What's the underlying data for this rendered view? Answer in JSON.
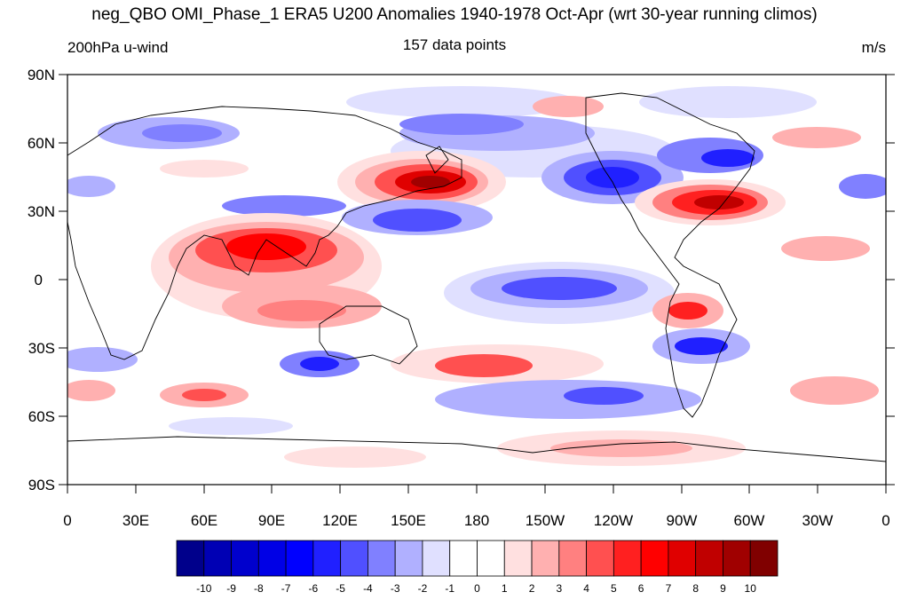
{
  "header": {
    "title": "neg_QBO OMI_Phase_1 ERA5 U200 Anomalies 1940-1978 Oct-Apr (wrt 30-year running climos)",
    "left_label": "200hPa u-wind",
    "center_label": "157 data points",
    "right_label": "m/s"
  },
  "axes": {
    "y_ticks": [
      "90N",
      "60N",
      "30N",
      "0",
      "30S",
      "60S",
      "90S"
    ],
    "x_ticks": [
      "0",
      "30E",
      "60E",
      "90E",
      "120E",
      "150E",
      "180",
      "150W",
      "120W",
      "90W",
      "60W",
      "30W",
      "0"
    ]
  },
  "colorbar": {
    "labels": [
      "-10",
      "-9",
      "-8",
      "-7",
      "-6",
      "-5",
      "-4",
      "-3",
      "-2",
      "-1",
      "0",
      "1",
      "2",
      "3",
      "4",
      "5",
      "6",
      "7",
      "8",
      "9",
      "10"
    ],
    "colors": [
      "#00008b",
      "#0000b4",
      "#0000cd",
      "#0000e6",
      "#0000ff",
      "#2020ff",
      "#5050ff",
      "#8080ff",
      "#b0b0ff",
      "#e0e0ff",
      "#ffffff",
      "#ffffff",
      "#ffe0e0",
      "#ffb0b0",
      "#ff8080",
      "#ff5050",
      "#ff2020",
      "#ff0000",
      "#e00000",
      "#c00000",
      "#a00000",
      "#800000"
    ]
  }
}
